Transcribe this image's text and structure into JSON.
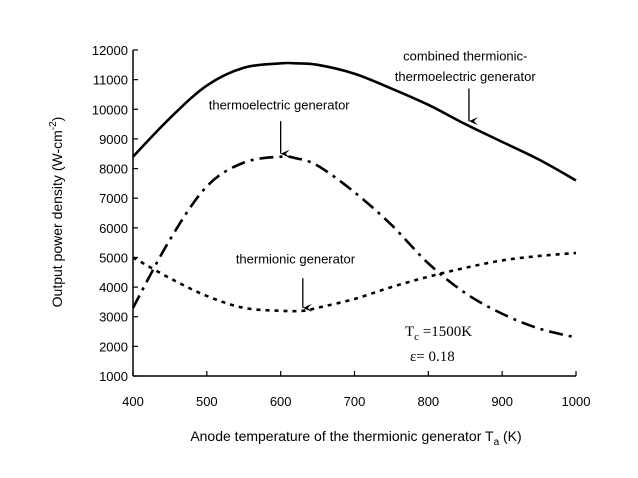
{
  "chart_data": {
    "type": "line",
    "title": "",
    "xlabel": "Anode temperature of the thermionic generator T",
    "xlabel_sub": "a",
    "xlabel_tail": " (K)",
    "ylabel": "Output power density (W-cm",
    "ylabel_sup": "-2",
    "ylabel_tail": ")",
    "xlim": [
      400,
      1000
    ],
    "ylim": [
      1000,
      12000
    ],
    "xticks": [
      400,
      500,
      600,
      700,
      800,
      900,
      1000
    ],
    "yticks": [
      1000,
      2000,
      3000,
      4000,
      5000,
      6000,
      7000,
      8000,
      9000,
      10000,
      11000,
      12000
    ],
    "grid": false,
    "legend": "none",
    "series": [
      {
        "name": "combined thermionic-thermoelectric generator",
        "style": "solid",
        "x": [
          400,
          450,
          500,
          550,
          600,
          620,
          650,
          700,
          750,
          800,
          850,
          900,
          950,
          1000
        ],
        "y": [
          8400,
          9700,
          10800,
          11400,
          11550,
          11550,
          11500,
          11200,
          10700,
          10150,
          9500,
          8900,
          8300,
          7600
        ]
      },
      {
        "name": "thermoelectric generator",
        "style": "dashdot",
        "x": [
          400,
          450,
          500,
          550,
          600,
          620,
          650,
          700,
          750,
          800,
          850,
          900,
          950,
          1000
        ],
        "y": [
          3300,
          5600,
          7400,
          8200,
          8400,
          8350,
          8100,
          7200,
          6100,
          4800,
          3800,
          3100,
          2600,
          2300
        ]
      },
      {
        "name": "thermionic generator",
        "style": "dotted",
        "x": [
          400,
          450,
          500,
          550,
          600,
          630,
          650,
          700,
          750,
          800,
          850,
          900,
          950,
          1000
        ],
        "y": [
          5000,
          4300,
          3700,
          3300,
          3200,
          3200,
          3300,
          3600,
          4000,
          4350,
          4650,
          4900,
          5050,
          5150
        ]
      }
    ],
    "annotations": [
      {
        "text": "combined thermionic-",
        "x": 850,
        "y": 11650
      },
      {
        "text": "thermoelectric generator",
        "x": 850,
        "y": 10950
      },
      {
        "text": "thermoelectric generator",
        "x": 598,
        "y": 10000
      },
      {
        "text": "thermionic generator",
        "x": 620,
        "y": 4800
      }
    ],
    "arrows": [
      {
        "target": "combined",
        "x": 855,
        "y_from": 10700,
        "y_to": 9600
      },
      {
        "target": "thermoelectric",
        "x": 600,
        "y_from": 9600,
        "y_to": 8500
      },
      {
        "target": "thermionic",
        "x": 630,
        "y_from": 4300,
        "y_to": 3300
      }
    ],
    "params": {
      "tc_main": "T",
      "tc_sub": "c",
      "tc_rest": " =1500K",
      "eps": "ε= 0.18"
    }
  }
}
